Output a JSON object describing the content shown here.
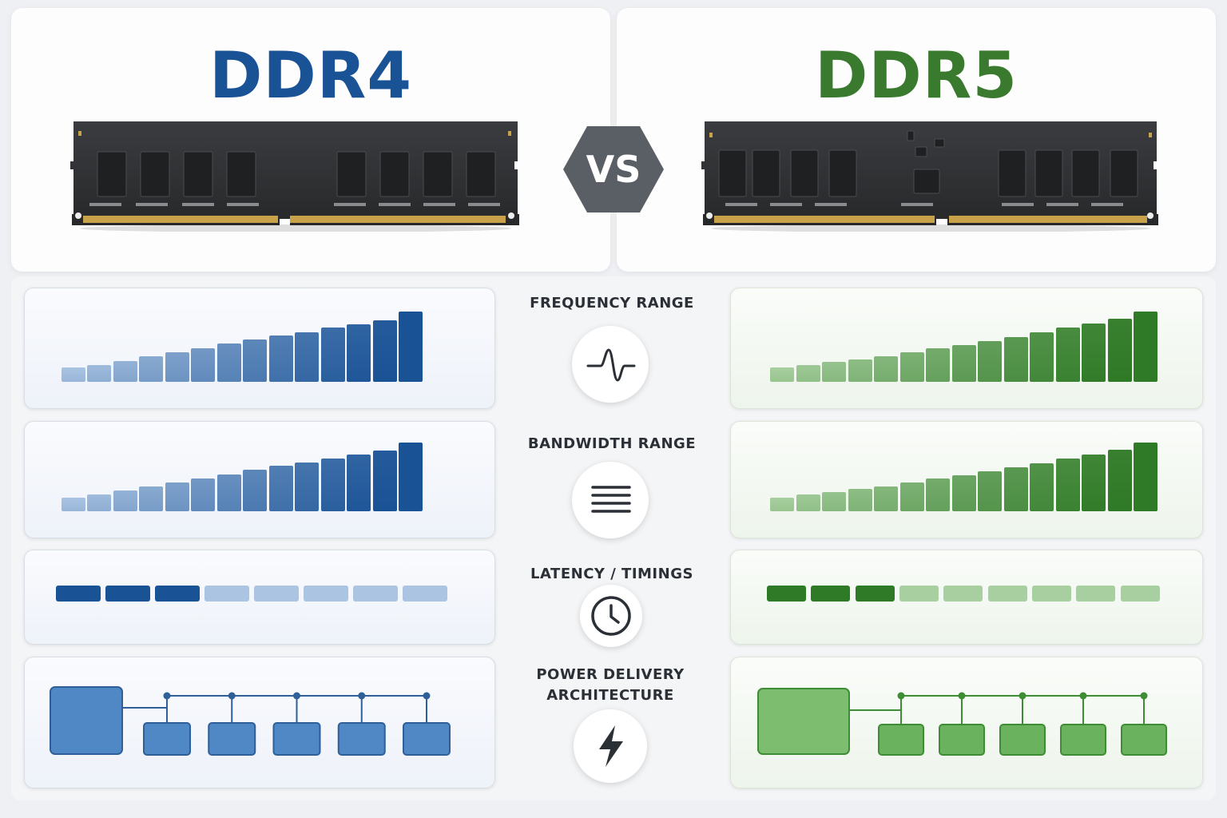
{
  "left": {
    "title": "DDR4",
    "title_color": "#1a5296",
    "frequency_bars": [
      0.2,
      0.24,
      0.3,
      0.36,
      0.42,
      0.48,
      0.54,
      0.6,
      0.66,
      0.71,
      0.77,
      0.82,
      0.88,
      1.0
    ],
    "bandwidth_bars": [
      0.2,
      0.24,
      0.3,
      0.36,
      0.42,
      0.48,
      0.54,
      0.6,
      0.66,
      0.71,
      0.77,
      0.82,
      0.88,
      1.0
    ],
    "latency": {
      "filled": 3,
      "total": 8
    },
    "power": {
      "branches": 5
    }
  },
  "right": {
    "title": "DDR5",
    "title_color": "#3a7a2e",
    "frequency_bars": [
      0.2,
      0.24,
      0.28,
      0.32,
      0.36,
      0.42,
      0.48,
      0.52,
      0.58,
      0.64,
      0.7,
      0.77,
      0.83,
      0.9,
      1.0
    ],
    "bandwidth_bars": [
      0.2,
      0.24,
      0.28,
      0.32,
      0.36,
      0.42,
      0.48,
      0.52,
      0.58,
      0.64,
      0.7,
      0.77,
      0.83,
      0.9,
      1.0
    ],
    "latency": {
      "filled": 3,
      "total": 9
    },
    "power": {
      "branches": 5
    }
  },
  "vs_label": "VS",
  "rows": [
    {
      "label": "FREQUENCY RANGE",
      "icon": "waveform-icon"
    },
    {
      "label": "BANDWIDTH RANGE",
      "icon": "lines-icon"
    },
    {
      "label": "LATENCY / TIMINGS",
      "icon": "clock-icon"
    },
    {
      "label": "POWER DELIVERY ARCHITECTURE",
      "icon": "lightning-icon"
    }
  ],
  "colors": {
    "blue_dark": "#1a5296",
    "blue_light": "#aac4e2",
    "green_dark": "#2f7a26",
    "green_light": "#a7cf9f"
  }
}
